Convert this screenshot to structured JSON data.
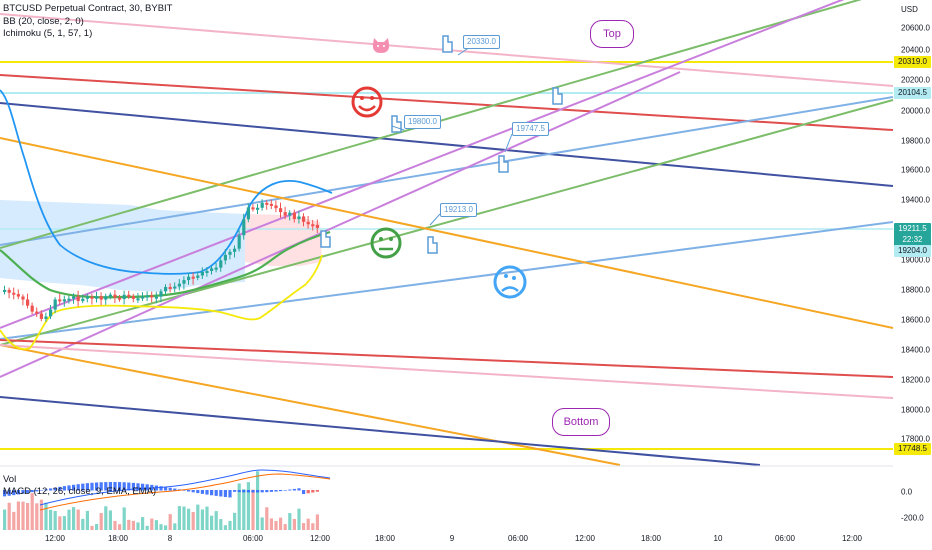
{
  "legend": {
    "symbol": "BTCUSD Perpetual Contract, 30, BYBIT",
    "bb": "BB (20, close, 2, 0)",
    "ichimoku": "Ichimoku (5, 1, 57, 1)"
  },
  "sub": {
    "vol": "Vol",
    "macd": "MACD (12, 26, close, 9, EMA, EMA)"
  },
  "axis": {
    "currency": "USD",
    "ticks": [
      "20600.0",
      "20400.0",
      "20200.0",
      "20000.0",
      "19800.0",
      "19600.0",
      "19400.0",
      "19000.0",
      "18800.0",
      "18600.0",
      "18400.0",
      "18200.0",
      "18000.0",
      "17800.0"
    ],
    "macd_ticks": [
      "0.0",
      "-200.0"
    ],
    "labels": {
      "l20319": "20319.0",
      "l20104": "20104.5",
      "price": "19211.5",
      "countdown": "22:32",
      "l19204": "19204.0",
      "l17748": "17748.5"
    }
  },
  "time_axis": [
    "12:00",
    "18:00",
    "8",
    "06:00",
    "12:00",
    "18:00",
    "9",
    "06:00",
    "12:00",
    "18:00",
    "10",
    "06:00",
    "12:00"
  ],
  "callouts": {
    "c1": "20330.0",
    "c2": "19800.0",
    "c3": "19747.5",
    "c4": "19213.0"
  },
  "bubbles": {
    "top": "Top",
    "bottom": "Bottom"
  },
  "colors": {
    "yellow": "#f5e90a",
    "purple": "#c97fdc",
    "green": "#7cbd6a",
    "red": "#e04d4d",
    "navy": "#3f51a0",
    "lightblue": "#7fb1e6",
    "orange": "#f5a623",
    "pink": "#f3b4c8",
    "cyan": "#b2ebf2",
    "price_green": "#26a69a"
  },
  "icons": [
    "cat-icon",
    "pointing-hand-icon",
    "happy-face-icon",
    "neutral-face-icon",
    "sad-face-icon"
  ]
}
